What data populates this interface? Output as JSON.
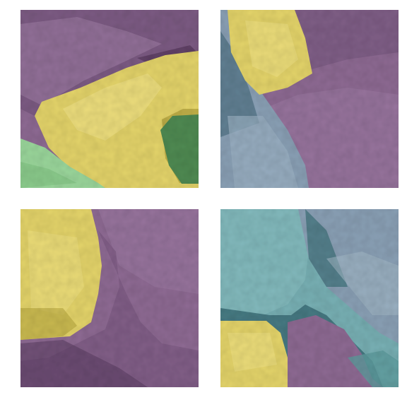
{
  "grid": {
    "rows": 2,
    "columns": 2
  },
  "palette": {
    "purple": "#8e6a93",
    "purple_dark": "#5a3c60",
    "yellow": "#e4d46a",
    "yellow_dark": "#b7a640",
    "green_light": "#9ad69b",
    "green_dark": "#4f8a52",
    "blue_grey": "#8aa0b5",
    "blue_dark": "#4a6d80",
    "teal": "#78b0b4",
    "teal_dark": "#3d7079"
  },
  "panels": [
    {
      "position": "top-left",
      "regions": [
        "purple",
        "yellow",
        "green_light",
        "green_dark"
      ]
    },
    {
      "position": "top-right",
      "regions": [
        "yellow",
        "purple",
        "blue_grey"
      ]
    },
    {
      "position": "bottom-left",
      "regions": [
        "yellow",
        "purple"
      ]
    },
    {
      "position": "bottom-right",
      "regions": [
        "teal",
        "blue_grey",
        "purple",
        "yellow"
      ]
    }
  ]
}
